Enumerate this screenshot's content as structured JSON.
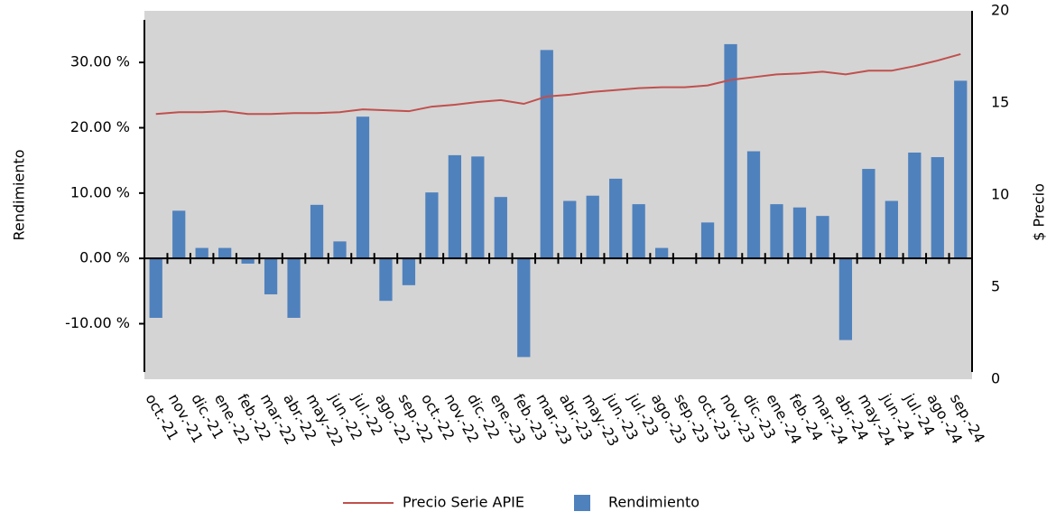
{
  "chart_data": {
    "type": "bar-line",
    "categories": [
      "oct.-21",
      "nov.-21",
      "dic.-21",
      "ene.-22",
      "feb.-22",
      "mar.-22",
      "abr.-22",
      "may.-22",
      "jun.-22",
      "jul.-22",
      "ago.-22",
      "sep.-22",
      "oct.-22",
      "nov.-22",
      "dic.-22",
      "ene.-23",
      "feb.-23",
      "mar.-23",
      "abr.-23",
      "may.-23",
      "jun.-23",
      "jul.-23",
      "ago.-23",
      "sep.-23",
      "oct.-23",
      "nov.-23",
      "dic.-23",
      "ene.-24",
      "feb.-24",
      "mar.-24",
      "abr.-24",
      "may.-24",
      "jun.-24",
      "jul.-24",
      "ago.-24",
      "sep.-24"
    ],
    "series": [
      {
        "name": "Precio Serie APIE",
        "color": "#c0504d",
        "axis": "y2",
        "kind": "line",
        "values": [
          14.4,
          14.5,
          14.5,
          14.55,
          14.4,
          14.4,
          14.45,
          14.45,
          14.5,
          14.65,
          14.6,
          14.55,
          14.8,
          14.9,
          15.05,
          15.15,
          14.95,
          15.35,
          15.45,
          15.6,
          15.7,
          15.8,
          15.85,
          15.85,
          15.95,
          16.25,
          16.4,
          16.55,
          16.6,
          16.7,
          16.55,
          16.75,
          16.75,
          17.0,
          17.3,
          17.65
        ]
      },
      {
        "name": "Rendimiento",
        "color": "#4f81bd",
        "kind": "bar",
        "values": [
          -9.1,
          7.3,
          1.6,
          1.6,
          -0.8,
          -5.5,
          -9.1,
          8.2,
          2.6,
          21.7,
          -6.5,
          -4.1,
          10.1,
          15.8,
          15.6,
          9.4,
          -15.1,
          31.9,
          8.8,
          9.6,
          12.2,
          8.3,
          1.6,
          0,
          5.5,
          32.8,
          16.4,
          8.3,
          7.8,
          6.5,
          -12.5,
          13.7,
          8.8,
          16.2,
          15.5,
          27.2
        ]
      }
    ],
    "y_label": "Rendimiento",
    "y2_label": "$ Precio",
    "ylim": [
      -18.5,
      37.9
    ],
    "yticks": [
      {
        "value": -10,
        "label": "-10.00 %"
      },
      {
        "value": 0,
        "label": "0.00 %"
      },
      {
        "value": 10,
        "label": "10.00 %"
      },
      {
        "value": 20,
        "label": "20.00 %"
      },
      {
        "value": 30,
        "label": "30.00 %"
      }
    ],
    "y2lim": [
      0,
      20
    ],
    "y2ticks": [
      0,
      5,
      10,
      15,
      20
    ]
  }
}
